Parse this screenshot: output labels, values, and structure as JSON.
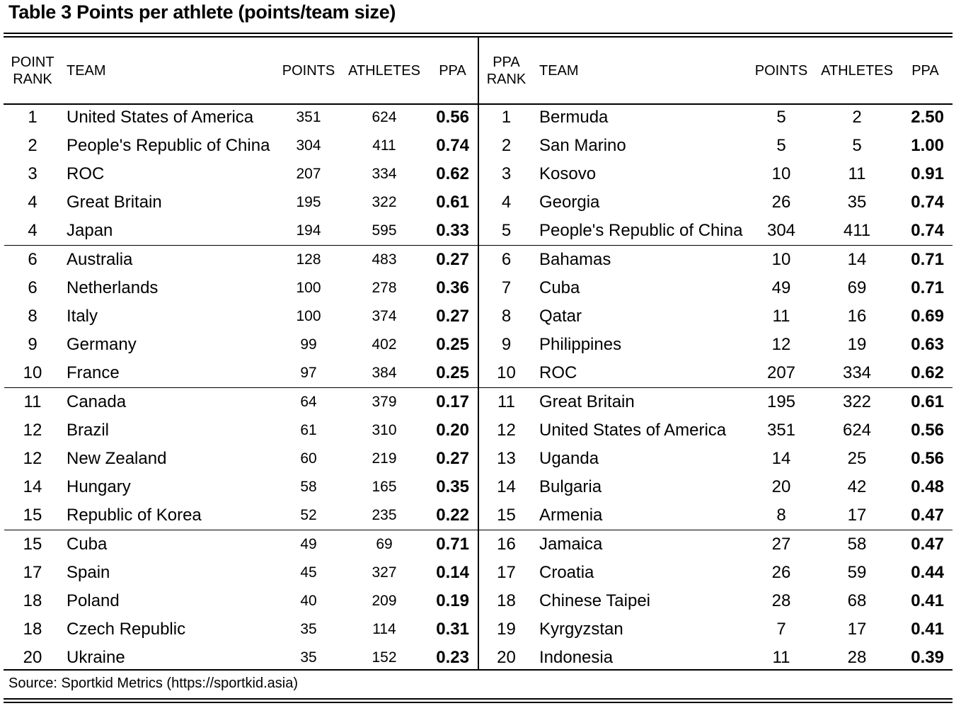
{
  "title": "Table 3  Points per athlete (points/team size)",
  "left_headers": {
    "rank_line1": "POINT",
    "rank_line2": "RANK",
    "team": "TEAM",
    "points": "POINTS",
    "athletes": "ATHLETES",
    "ppa": "PPA"
  },
  "right_headers": {
    "rank_line1": "PPA",
    "rank_line2": "RANK",
    "team": "TEAM",
    "points": "POINTS",
    "athletes": "ATHLETES",
    "ppa": "PPA"
  },
  "left_rows": [
    {
      "rank": "1",
      "team": "United States of America",
      "points": "351",
      "athletes": "624",
      "ppa": "0.56"
    },
    {
      "rank": "2",
      "team": "People's Republic of China",
      "points": "304",
      "athletes": "411",
      "ppa": "0.74"
    },
    {
      "rank": "3",
      "team": "ROC",
      "points": "207",
      "athletes": "334",
      "ppa": "0.62"
    },
    {
      "rank": "4",
      "team": "Great Britain",
      "points": "195",
      "athletes": "322",
      "ppa": "0.61"
    },
    {
      "rank": "4",
      "team": "Japan",
      "points": "194",
      "athletes": "595",
      "ppa": "0.33"
    },
    {
      "rank": "6",
      "team": "Australia",
      "points": "128",
      "athletes": "483",
      "ppa": "0.27"
    },
    {
      "rank": "6",
      "team": "Netherlands",
      "points": "100",
      "athletes": "278",
      "ppa": "0.36"
    },
    {
      "rank": "8",
      "team": "Italy",
      "points": "100",
      "athletes": "374",
      "ppa": "0.27"
    },
    {
      "rank": "9",
      "team": "Germany",
      "points": "99",
      "athletes": "402",
      "ppa": "0.25"
    },
    {
      "rank": "10",
      "team": "France",
      "points": "97",
      "athletes": "384",
      "ppa": "0.25"
    },
    {
      "rank": "11",
      "team": "Canada",
      "points": "64",
      "athletes": "379",
      "ppa": "0.17"
    },
    {
      "rank": "12",
      "team": "Brazil",
      "points": "61",
      "athletes": "310",
      "ppa": "0.20"
    },
    {
      "rank": "12",
      "team": "New Zealand",
      "points": "60",
      "athletes": "219",
      "ppa": "0.27"
    },
    {
      "rank": "14",
      "team": "Hungary",
      "points": "58",
      "athletes": "165",
      "ppa": "0.35"
    },
    {
      "rank": "15",
      "team": "Republic of Korea",
      "points": "52",
      "athletes": "235",
      "ppa": "0.22"
    },
    {
      "rank": "15",
      "team": "Cuba",
      "points": "49",
      "athletes": "69",
      "ppa": "0.71"
    },
    {
      "rank": "17",
      "team": "Spain",
      "points": "45",
      "athletes": "327",
      "ppa": "0.14"
    },
    {
      "rank": "18",
      "team": "Poland",
      "points": "40",
      "athletes": "209",
      "ppa": "0.19"
    },
    {
      "rank": "18",
      "team": "Czech Republic",
      "points": "35",
      "athletes": "114",
      "ppa": "0.31"
    },
    {
      "rank": "20",
      "team": "Ukraine",
      "points": "35",
      "athletes": "152",
      "ppa": "0.23"
    }
  ],
  "right_rows": [
    {
      "rank": "1",
      "team": "Bermuda",
      "points": "5",
      "athletes": "2",
      "ppa": "2.50"
    },
    {
      "rank": "2",
      "team": "San Marino",
      "points": "5",
      "athletes": "5",
      "ppa": "1.00"
    },
    {
      "rank": "3",
      "team": "Kosovo",
      "points": "10",
      "athletes": "11",
      "ppa": "0.91"
    },
    {
      "rank": "4",
      "team": "Georgia",
      "points": "26",
      "athletes": "35",
      "ppa": "0.74"
    },
    {
      "rank": "5",
      "team": "People's Republic of China",
      "points": "304",
      "athletes": "411",
      "ppa": "0.74"
    },
    {
      "rank": "6",
      "team": "Bahamas",
      "points": "10",
      "athletes": "14",
      "ppa": "0.71"
    },
    {
      "rank": "7",
      "team": "Cuba",
      "points": "49",
      "athletes": "69",
      "ppa": "0.71"
    },
    {
      "rank": "8",
      "team": "Qatar",
      "points": "11",
      "athletes": "16",
      "ppa": "0.69"
    },
    {
      "rank": "9",
      "team": "Philippines",
      "points": "12",
      "athletes": "19",
      "ppa": "0.63"
    },
    {
      "rank": "10",
      "team": "ROC",
      "points": "207",
      "athletes": "334",
      "ppa": "0.62"
    },
    {
      "rank": "11",
      "team": "Great Britain",
      "points": "195",
      "athletes": "322",
      "ppa": "0.61"
    },
    {
      "rank": "12",
      "team": "United States of America",
      "points": "351",
      "athletes": "624",
      "ppa": "0.56"
    },
    {
      "rank": "13",
      "team": "Uganda",
      "points": "14",
      "athletes": "25",
      "ppa": "0.56"
    },
    {
      "rank": "14",
      "team": "Bulgaria",
      "points": "20",
      "athletes": "42",
      "ppa": "0.48"
    },
    {
      "rank": "15",
      "team": "Armenia",
      "points": "8",
      "athletes": "17",
      "ppa": "0.47"
    },
    {
      "rank": "16",
      "team": "Jamaica",
      "points": "27",
      "athletes": "58",
      "ppa": "0.47"
    },
    {
      "rank": "17",
      "team": "Croatia",
      "points": "26",
      "athletes": "59",
      "ppa": "0.44"
    },
    {
      "rank": "18",
      "team": "Chinese Taipei",
      "points": "28",
      "athletes": "68",
      "ppa": "0.41"
    },
    {
      "rank": "19",
      "team": "Kyrgyzstan",
      "points": "7",
      "athletes": "17",
      "ppa": "0.41"
    },
    {
      "rank": "20",
      "team": "Indonesia",
      "points": "11",
      "athletes": "28",
      "ppa": "0.39"
    }
  ],
  "source": "Source: Sportkid Metrics (https://sportkid.asia)"
}
